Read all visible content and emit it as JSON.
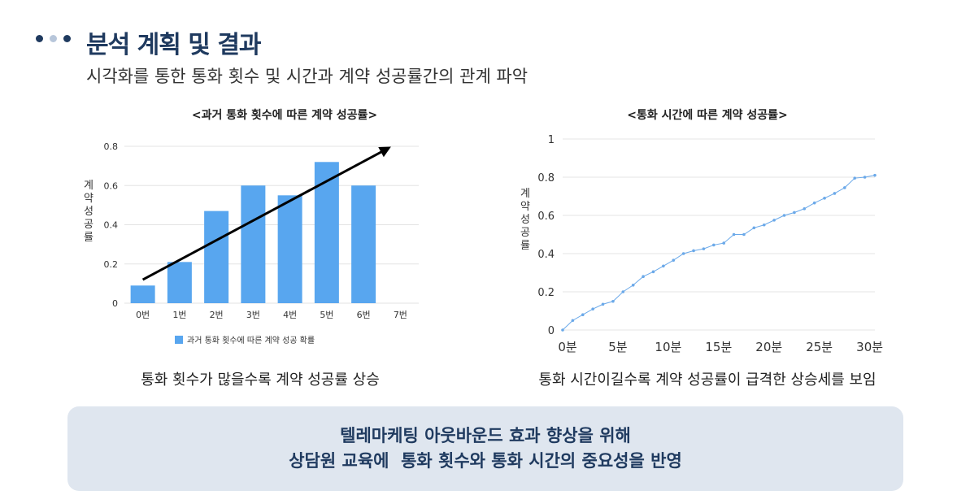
{
  "header": {
    "title": "분석 계획 및 결과",
    "subtitle": "시각화를 통한 통화 횟수 및 시간과 계약 성공률간의 관계 파악",
    "dot_colors": [
      "#1f3a5f",
      "#b7c6da",
      "#1f3a5f"
    ]
  },
  "colors": {
    "bar": "#58a6ef",
    "line": "#6ba9e9",
    "title": "#1f3a5f",
    "panel": "#dfe6ef"
  },
  "chart_data": [
    {
      "type": "bar",
      "title": "<과거 통화 횟수에 따른 계약 성공률>",
      "ylabel": "계약 성공률",
      "categories": [
        "0번",
        "1번",
        "2번",
        "3번",
        "4번",
        "5번",
        "6번",
        "7번"
      ],
      "series": [
        {
          "name": "과거 통화 횟수에 따른 계약 성공 확률",
          "values": [
            0.09,
            0.21,
            0.47,
            0.6,
            0.55,
            0.72,
            0.6,
            null
          ]
        }
      ],
      "ylim": [
        0,
        0.8
      ],
      "yticks": [
        "0",
        "0.2",
        "0.4",
        "0.6",
        "0.8"
      ],
      "grid": true,
      "legend": "bottom",
      "annotations": [
        {
          "type": "trend-arrow",
          "from": [
            "0번",
            0.12
          ],
          "to": [
            "7번",
            0.79
          ]
        }
      ]
    },
    {
      "type": "line",
      "title": "<통화 시간에 따른 계약 성공률>",
      "ylabel": "계약 성공률",
      "x": [
        0,
        1,
        2,
        3,
        4,
        5,
        6,
        7,
        8,
        9,
        10,
        11,
        12,
        13,
        14,
        15,
        16,
        17,
        18,
        19,
        20,
        21,
        22,
        23,
        24,
        25,
        26,
        27,
        28,
        29,
        30,
        31
      ],
      "values": [
        0.0,
        0.05,
        0.08,
        0.11,
        0.135,
        0.15,
        0.2,
        0.235,
        0.28,
        0.305,
        0.335,
        0.365,
        0.4,
        0.415,
        0.425,
        0.445,
        0.455,
        0.5,
        0.5,
        0.535,
        0.55,
        0.575,
        0.6,
        0.615,
        0.635,
        0.665,
        0.69,
        0.715,
        0.745,
        0.795,
        0.8,
        0.81
      ],
      "xticks": [
        "0분",
        "5분",
        "10분",
        "15분",
        "20분",
        "25분",
        "30분"
      ],
      "ylim": [
        0,
        1
      ],
      "yticks": [
        "0",
        "0.2",
        "0.4",
        "0.6",
        "0.8",
        "1"
      ],
      "grid": true
    }
  ],
  "captions": {
    "left": "통화 횟수가 많을수록 계약 성공률 상승",
    "right": "통화 시간이길수록 계약 성공률이 급격한 상승세를 보임"
  },
  "conclusion": {
    "line1": "텔레마케팅 아웃바운드 효과 향상을 위해",
    "line2": "상담원 교육에  통화 횟수와 통화 시간의 중요성을 반영"
  }
}
